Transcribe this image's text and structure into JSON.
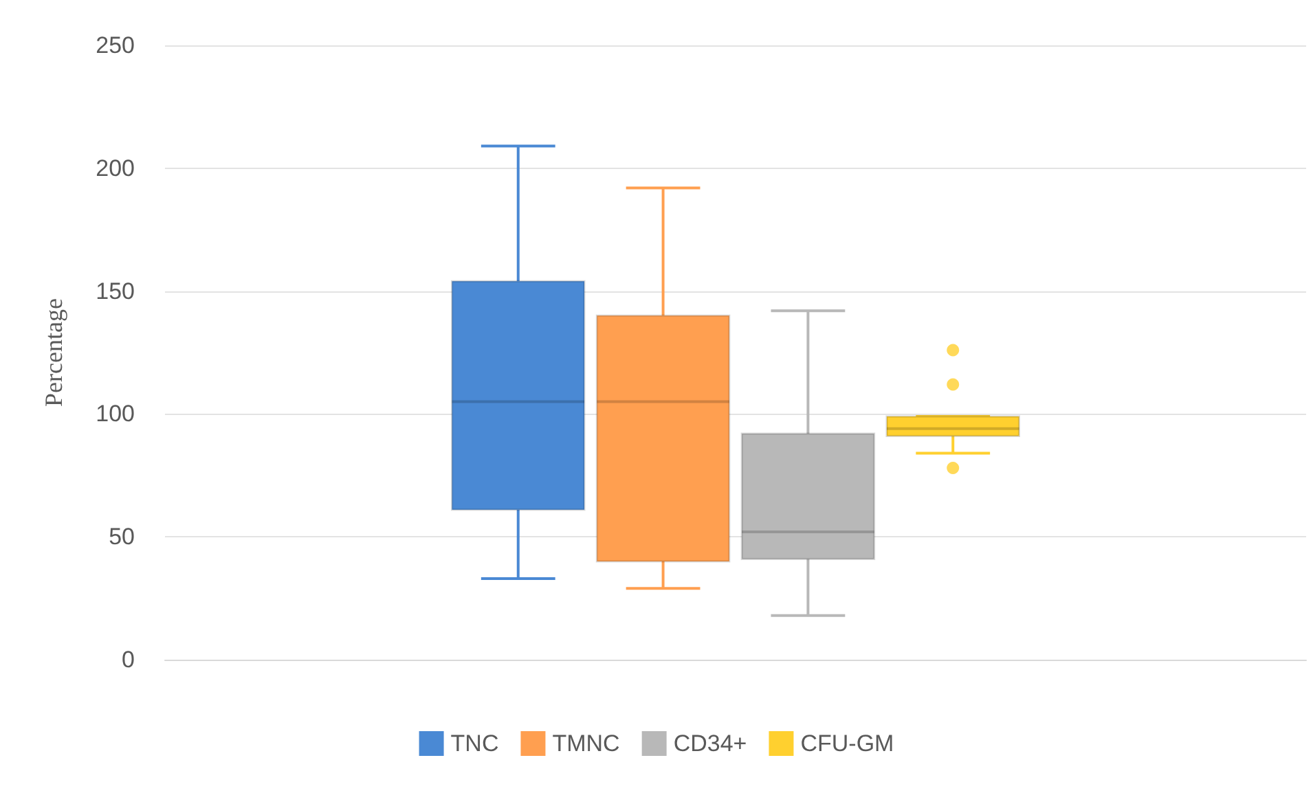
{
  "chart_data": {
    "type": "box",
    "ylabel": "Percentage",
    "categories": [
      null
    ],
    "series": [
      {
        "name": "TNC",
        "color": "#4a89d4",
        "boxes": [
          {
            "low": 33,
            "q1": 61,
            "median": 105,
            "q3": 154,
            "high": 209
          }
        ]
      },
      {
        "name": "TMNC",
        "color": "#ff9f50",
        "boxes": [
          {
            "low": 29,
            "q1": 40,
            "median": 105,
            "q3": 140,
            "high": 192
          }
        ]
      },
      {
        "name": "CD34+",
        "color": "#b8b8b8",
        "boxes": [
          {
            "low": 18,
            "q1": 41,
            "median": 52,
            "q3": 92,
            "high": 142
          }
        ]
      },
      {
        "name": "CFU-GM",
        "color": "#ffd02f",
        "boxes": [
          {
            "low": 84,
            "q1": 91,
            "median": 94,
            "q3": 99,
            "high": 99,
            "outliers": [
              126,
              112,
              78
            ]
          }
        ]
      }
    ],
    "ylim": [
      0,
      250
    ],
    "yticks": [
      0,
      50,
      100,
      150,
      200,
      250
    ],
    "grid": "y",
    "legend": "bottom"
  }
}
